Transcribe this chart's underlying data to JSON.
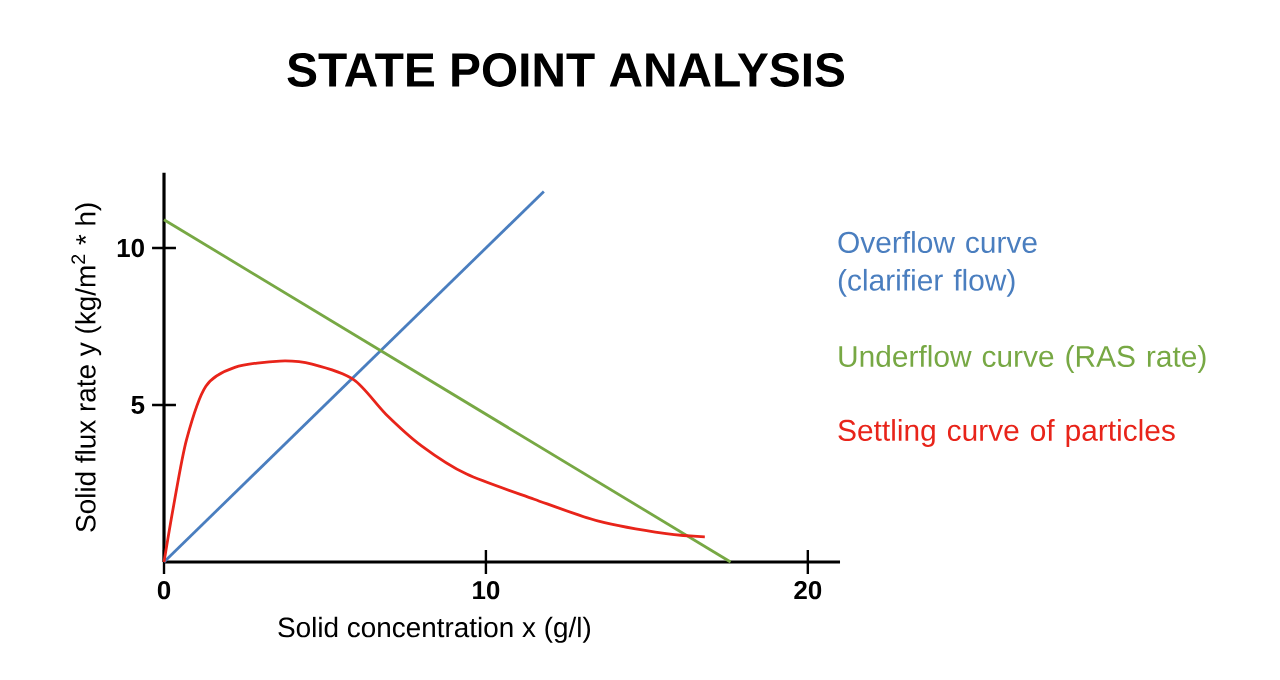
{
  "chart_data": {
    "type": "line",
    "title": "STATE POINT ANALYSIS",
    "xlabel": "Solid concentration x (g/l)",
    "ylabel": "Solid flux rate y (kg/m$^{2}$ * h)",
    "xlim": [
      0,
      21
    ],
    "ylim": [
      0,
      12.4
    ],
    "xticks": [
      0,
      10,
      20
    ],
    "yticks": [
      5,
      10
    ],
    "legend": "right",
    "grid": false,
    "marker": "none",
    "line_style": "solid",
    "series": [
      {
        "name": "Overflow curve (clarifier flow)",
        "color": "#4a7ebf",
        "x": [
          0,
          11.8
        ],
        "values": [
          0,
          11.8
        ]
      },
      {
        "name": "Underflow curve (RAS rate)",
        "color": "#77a844",
        "x": [
          0,
          17.6
        ],
        "values": [
          10.9,
          0
        ]
      },
      {
        "name": "Settling curve of particles",
        "color": "#e8241a",
        "x": [
          0,
          0.3,
          0.7,
          1.3,
          2.2,
          3.6,
          4.6,
          5.9,
          6.9,
          8.0,
          9.4,
          11.5,
          13.5,
          15.6,
          16.8
        ],
        "values": [
          0,
          1.8,
          3.9,
          5.6,
          6.2,
          6.4,
          6.3,
          5.8,
          4.7,
          3.7,
          2.8,
          2.0,
          1.3,
          0.9,
          0.8
        ]
      }
    ]
  }
}
